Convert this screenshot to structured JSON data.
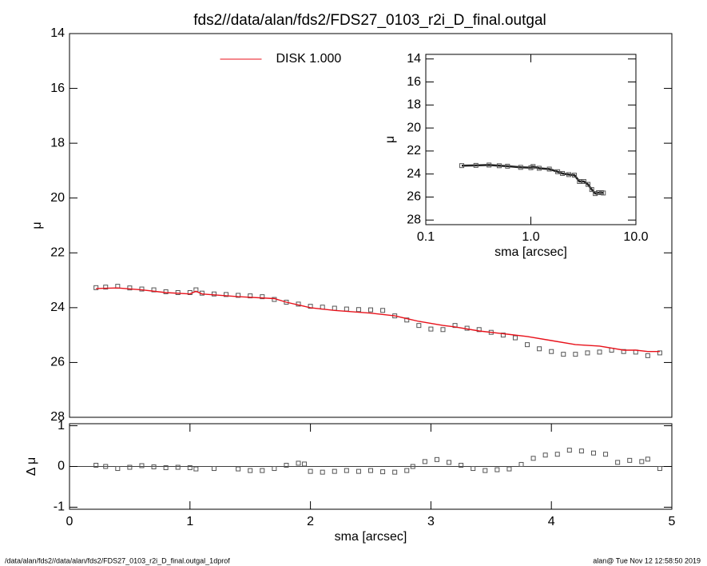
{
  "chart_data": [
    {
      "type": "scatter",
      "title": "fds2//data/alan/fds2/FDS27_0103_r2i_D_final.outgal",
      "ylabel": "μ",
      "xlim": [
        0,
        5
      ],
      "ylim": [
        28,
        14
      ],
      "yticks": [
        14,
        16,
        18,
        20,
        22,
        24,
        26,
        28
      ],
      "legend": "top-center",
      "series": [
        {
          "color": "#555555",
          "style": "marker",
          "x": [
            0.22,
            0.3,
            0.4,
            0.5,
            0.6,
            0.7,
            0.8,
            0.9,
            1.0,
            1.05,
            1.1,
            1.2,
            1.3,
            1.4,
            1.5,
            1.6,
            1.7,
            1.8,
            1.9,
            2.0,
            2.1,
            2.2,
            2.3,
            2.4,
            2.5,
            2.6,
            2.7,
            2.8,
            2.9,
            3.0,
            3.1,
            3.2,
            3.3,
            3.4,
            3.5,
            3.6,
            3.7,
            3.8,
            3.9,
            4.0,
            4.1,
            4.2,
            4.3,
            4.4,
            4.5,
            4.6,
            4.7,
            4.8,
            4.9
          ],
          "values": [
            23.27,
            23.25,
            23.22,
            23.28,
            23.32,
            23.35,
            23.42,
            23.45,
            23.45,
            23.35,
            23.47,
            23.5,
            23.52,
            23.55,
            23.57,
            23.6,
            23.7,
            23.8,
            23.87,
            23.95,
            23.98,
            24.02,
            24.05,
            24.07,
            24.08,
            24.1,
            24.3,
            24.45,
            24.65,
            24.78,
            24.8,
            24.65,
            24.75,
            24.8,
            24.9,
            25.0,
            25.1,
            25.35,
            25.5,
            25.6,
            25.7,
            25.7,
            25.65,
            25.62,
            25.55,
            25.6,
            25.62,
            25.75,
            25.65
          ]
        },
        {
          "name": "DISK  1.000",
          "color": "#e8121b",
          "style": "line",
          "x": [
            0.22,
            0.4,
            0.6,
            0.8,
            1.0,
            1.05,
            1.1,
            1.4,
            1.7,
            1.8,
            2.0,
            2.2,
            2.5,
            2.7,
            2.9,
            3.1,
            3.2,
            3.4,
            3.6,
            3.8,
            4.0,
            4.2,
            4.4,
            4.6,
            4.7,
            4.8,
            4.9
          ],
          "values": [
            23.3,
            23.28,
            23.35,
            23.45,
            23.5,
            23.4,
            23.5,
            23.6,
            23.67,
            23.8,
            24.0,
            24.1,
            24.2,
            24.3,
            24.5,
            24.65,
            24.7,
            24.85,
            24.95,
            25.05,
            25.2,
            25.35,
            25.4,
            25.55,
            25.55,
            25.6,
            25.6
          ]
        }
      ]
    },
    {
      "type": "scatter",
      "xlabel": "sma [arcsec]",
      "ylabel": "Δ μ",
      "xlim": [
        0,
        5
      ],
      "ylim": [
        -1.05,
        1.05
      ],
      "xticks": [
        0,
        1,
        2,
        3,
        4,
        5
      ],
      "yticks": [
        -1,
        0,
        1
      ],
      "hline": 0,
      "series": [
        {
          "color": "#555555",
          "style": "marker",
          "x": [
            0.22,
            0.3,
            0.4,
            0.5,
            0.6,
            0.7,
            0.8,
            0.9,
            1.0,
            1.05,
            1.2,
            1.4,
            1.5,
            1.6,
            1.7,
            1.8,
            1.9,
            1.95,
            2.0,
            2.1,
            2.2,
            2.3,
            2.4,
            2.5,
            2.6,
            2.7,
            2.8,
            2.85,
            2.95,
            3.05,
            3.15,
            3.25,
            3.35,
            3.45,
            3.55,
            3.65,
            3.75,
            3.85,
            3.95,
            4.05,
            4.15,
            4.25,
            4.35,
            4.45,
            4.55,
            4.65,
            4.75,
            4.8,
            4.9
          ],
          "values": [
            0.03,
            0.0,
            -0.05,
            -0.02,
            0.02,
            -0.01,
            -0.03,
            -0.02,
            -0.03,
            -0.06,
            -0.05,
            -0.06,
            -0.1,
            -0.1,
            -0.05,
            0.03,
            0.08,
            0.06,
            -0.12,
            -0.14,
            -0.12,
            -0.1,
            -0.12,
            -0.1,
            -0.13,
            -0.14,
            -0.1,
            0.0,
            0.12,
            0.17,
            0.1,
            0.03,
            -0.05,
            -0.1,
            -0.08,
            -0.06,
            0.05,
            0.2,
            0.28,
            0.3,
            0.4,
            0.38,
            0.33,
            0.3,
            0.1,
            0.15,
            0.12,
            0.18,
            -0.05
          ]
        }
      ]
    },
    {
      "type": "scatter",
      "xlabel": "sma [arcsec]",
      "ylabel": "μ",
      "xlog": true,
      "xlim": [
        0.1,
        10
      ],
      "ylim": [
        28.4,
        13.6
      ],
      "xticks": [
        0.1,
        {
          "value": 1,
          "label": "1.0"
        },
        {
          "value": 10,
          "label": "10.0"
        }
      ],
      "yticks": [
        14,
        16,
        18,
        20,
        22,
        24,
        26,
        28
      ],
      "series": [
        {
          "color": "#555555",
          "style": "marker-line",
          "x": [
            0.22,
            0.3,
            0.4,
            0.5,
            0.6,
            0.8,
            1.0,
            1.05,
            1.2,
            1.5,
            1.8,
            2.0,
            2.3,
            2.6,
            2.9,
            3.2,
            3.5,
            3.8,
            4.1,
            4.4,
            4.7,
            4.9
          ],
          "values": [
            23.27,
            23.25,
            23.22,
            23.28,
            23.32,
            23.42,
            23.45,
            23.35,
            23.5,
            23.57,
            23.8,
            23.95,
            24.05,
            24.1,
            24.65,
            24.65,
            24.9,
            25.35,
            25.7,
            25.62,
            25.62,
            25.65
          ]
        }
      ]
    }
  ],
  "footer": {
    "left": "/data/alan/fds2//data/alan/fds2/FDS27_0103_r2i_D_final.outgal_1dprof",
    "right": "alan@  Tue Nov 12 12:58:50 2019"
  }
}
